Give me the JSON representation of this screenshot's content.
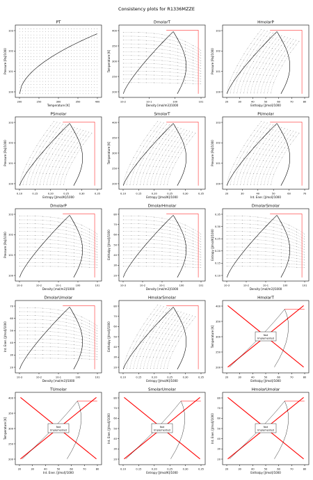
{
  "title": "Consistency plots for R1336MZZE",
  "not_implemented_label": "Not\nImplemented",
  "colors": {
    "isoline": "#000000",
    "saturation": "#ff0000",
    "cross": "#ff0000",
    "frame": "#000000"
  },
  "chart_data": [
    {
      "id": "PT",
      "title": "PT",
      "type": "line",
      "xlabel": "Temperature [K]",
      "ylabel": "Pressure [Pa]/1000",
      "xlim": [
        190,
        445
      ],
      "ylim_log": [
        0.6,
        7000
      ],
      "ylog": true,
      "xlog": false,
      "xticks": [
        "200",
        "250",
        "300",
        "350",
        "400"
      ],
      "yticks": [
        "10^0",
        "10^1",
        "10^2",
        "10^3"
      ],
      "implemented": true,
      "curves": [
        {
          "kind": "sat",
          "x": [
            200,
            240,
            280,
            320,
            360,
            400,
            430
          ],
          "y": [
            1,
            5,
            25,
            100,
            300,
            800,
            1800
          ]
        }
      ]
    },
    {
      "id": "DmolarT",
      "title": "DmolarT",
      "type": "scatter",
      "xlabel": "Density [mol/m3]/1000",
      "ylabel": "Temperature [K]",
      "xlim_log": [
        0.01,
        15
      ],
      "ylim": [
        190,
        430
      ],
      "xlog": true,
      "ylog": false,
      "xticks": [
        "10^-2",
        "10^-1",
        "10^0",
        "10^1"
      ],
      "yticks": [
        "200",
        "250",
        "300",
        "350",
        "400"
      ],
      "implemented": true
    },
    {
      "id": "HmolarP",
      "title": "HmolarP",
      "type": "scatter",
      "xlabel": "Enthalpy [J/mol]/1000",
      "ylabel": "Pressure [Pa]/1000",
      "xlim": [
        15,
        80
      ],
      "ylim_log": [
        0.6,
        7000
      ],
      "xlog": false,
      "ylog": true,
      "xticks": [
        "20",
        "30",
        "40",
        "50",
        "60",
        "70",
        "80"
      ],
      "yticks": [
        "10^0",
        "10^1",
        "10^2",
        "10^3"
      ],
      "implemented": true
    },
    {
      "id": "PSmolar",
      "title": "PSmolar",
      "type": "scatter",
      "xlabel": "Entropy [J/mol/K]/1000",
      "ylabel": "Pressure [Pa]/1000",
      "xlim": [
        0.09,
        0.365
      ],
      "ylim_log": [
        0.6,
        7000
      ],
      "xlog": false,
      "ylog": true,
      "xticks": [
        "0.10",
        "0.15",
        "0.20",
        "0.25",
        "0.30",
        "0.35"
      ],
      "yticks": [
        "10^0",
        "10^1",
        "10^2",
        "10^3"
      ],
      "implemented": true
    },
    {
      "id": "SmolarT",
      "title": "SmolarT",
      "type": "scatter",
      "xlabel": "Entropy [J/mol/K]/1000",
      "ylabel": "Temperature [K]",
      "xlim": [
        0.09,
        0.365
      ],
      "ylim": [
        190,
        420
      ],
      "xlog": false,
      "ylog": false,
      "xticks": [
        "0.10",
        "0.15",
        "0.20",
        "0.25",
        "0.30",
        "0.35"
      ],
      "yticks": [
        "200",
        "250",
        "300",
        "350",
        "400"
      ],
      "implemented": true
    },
    {
      "id": "PUmolar",
      "title": "PUmolar",
      "type": "scatter",
      "xlabel": "Int. Ener. [J/mol]/1000",
      "ylabel": "Pressure [Pa]/1000",
      "xlim": [
        15,
        75
      ],
      "ylim_log": [
        0.6,
        7000
      ],
      "xlog": false,
      "ylog": true,
      "xticks": [
        "20",
        "30",
        "40",
        "50",
        "60",
        "70"
      ],
      "yticks": [
        "10^0",
        "10^1",
        "10^2",
        "10^3"
      ],
      "implemented": true
    },
    {
      "id": "DmolarP",
      "title": "DmolarP",
      "type": "scatter",
      "xlabel": "Density [mol/m3]/1000",
      "ylabel": "Pressure [Pa]/1000",
      "xlim_log": [
        0.003,
        15
      ],
      "ylim_log": [
        0.4,
        7000
      ],
      "xlog": true,
      "ylog": true,
      "xticks": [
        "10^-3",
        "10^-2",
        "10^-1",
        "10^0",
        "10^1"
      ],
      "yticks": [
        "10^0",
        "10^1",
        "10^2",
        "10^3"
      ],
      "implemented": true
    },
    {
      "id": "DmolarHmolar",
      "title": "DmolarHmolar",
      "type": "scatter",
      "xlabel": "Density [mol/m3]/1000",
      "ylabel": "Enthalpy [J/mol]/1000",
      "xlim_log": [
        0.003,
        15
      ],
      "ylim": [
        15,
        80
      ],
      "xlog": true,
      "ylog": false,
      "xticks": [
        "10^-3",
        "10^-2",
        "10^-1",
        "10^0",
        "10^1"
      ],
      "yticks": [
        "20",
        "30",
        "40",
        "50",
        "60",
        "70",
        "80"
      ],
      "implemented": true
    },
    {
      "id": "DmolarSmolar",
      "title": "DmolarSmolar",
      "type": "scatter",
      "xlabel": "Density [mol/m3]/1000",
      "ylabel": "Entropy [J/mol/K]/1000",
      "xlim_log": [
        0.003,
        15
      ],
      "ylim": [
        0.09,
        0.365
      ],
      "xlog": true,
      "ylog": false,
      "xticks": [
        "10^-3",
        "10^-2",
        "10^-1",
        "10^0",
        "10^1"
      ],
      "yticks": [
        "0.10",
        "0.15",
        "0.20",
        "0.25",
        "0.30",
        "0.35"
      ],
      "implemented": true
    },
    {
      "id": "DmolarUmolar",
      "title": "DmolarUmolar",
      "type": "scatter",
      "xlabel": "Density [mol/m3]/1000",
      "ylabel": "Int. Ener. [J/mol]/1000",
      "xlim_log": [
        0.003,
        15
      ],
      "ylim": [
        15,
        75
      ],
      "xlog": true,
      "ylog": false,
      "xticks": [
        "10^-3",
        "10^-2",
        "10^-1",
        "10^0",
        "10^1"
      ],
      "yticks": [
        "20",
        "30",
        "40",
        "50",
        "60",
        "70"
      ],
      "implemented": true
    },
    {
      "id": "HmolarSmolar",
      "title": "HmolarSmolar",
      "type": "scatter",
      "xlabel": "Entropy [J/mol/K]/1000",
      "ylabel": "Enthalpy [J/mol]/1000",
      "xlim": [
        0.09,
        0.365
      ],
      "ylim": [
        15,
        80
      ],
      "xlog": false,
      "ylog": false,
      "xticks": [
        "0.10",
        "0.15",
        "0.20",
        "0.25",
        "0.30",
        "0.35"
      ],
      "yticks": [
        "20",
        "30",
        "40",
        "50",
        "60",
        "70",
        "80"
      ],
      "implemented": true
    },
    {
      "id": "HmolarT",
      "title": "HmolarT",
      "type": "line",
      "xlabel": "Enthalpy [J/mol]/1000",
      "ylabel": "Temperature [K]",
      "xlim": [
        15,
        80
      ],
      "ylim": [
        190,
        430
      ],
      "xlog": false,
      "ylog": false,
      "xticks": [
        "20",
        "30",
        "40",
        "50",
        "60",
        "70",
        "80"
      ],
      "yticks": [
        "200",
        "250",
        "300",
        "350",
        "400"
      ],
      "implemented": false
    },
    {
      "id": "TUmolar",
      "title": "TUmolar",
      "type": "line",
      "xlabel": "Int. Ener. [J/mol]/1000",
      "ylabel": "Temperature [K]",
      "xlim": [
        15,
        80
      ],
      "ylim": [
        190,
        430
      ],
      "xlog": false,
      "ylog": false,
      "xticks": [
        "20",
        "30",
        "40",
        "50",
        "60",
        "70",
        "80"
      ],
      "yticks": [
        "200",
        "250",
        "300",
        "350",
        "400"
      ],
      "implemented": false
    },
    {
      "id": "SmolarUmolar",
      "title": "SmolarUmolar",
      "type": "line",
      "xlabel": "Entropy [J/mol/K]/1000",
      "ylabel": "Int. Ener. [J/mol]/1000",
      "xlim": [
        0.09,
        0.365
      ],
      "ylim": [
        15,
        80
      ],
      "xlog": false,
      "ylog": false,
      "xticks": [
        "0.10",
        "0.15",
        "0.20",
        "0.25",
        "0.30",
        "0.35"
      ],
      "yticks": [
        "20",
        "30",
        "40",
        "50",
        "60",
        "70",
        "80"
      ],
      "implemented": false
    },
    {
      "id": "HmolarUmolar",
      "title": "HmolarUmolar",
      "type": "line",
      "xlabel": "Enthalpy [J/mol]/1000",
      "ylabel": "Int. Ener. [J/mol]/1000",
      "xlim": [
        15,
        80
      ],
      "ylim": [
        15,
        80
      ],
      "xlog": false,
      "ylog": false,
      "xticks": [
        "20",
        "30",
        "40",
        "50",
        "60",
        "70",
        "80"
      ],
      "yticks": [
        "20",
        "30",
        "40",
        "50",
        "60",
        "70",
        "80"
      ],
      "implemented": false
    }
  ]
}
